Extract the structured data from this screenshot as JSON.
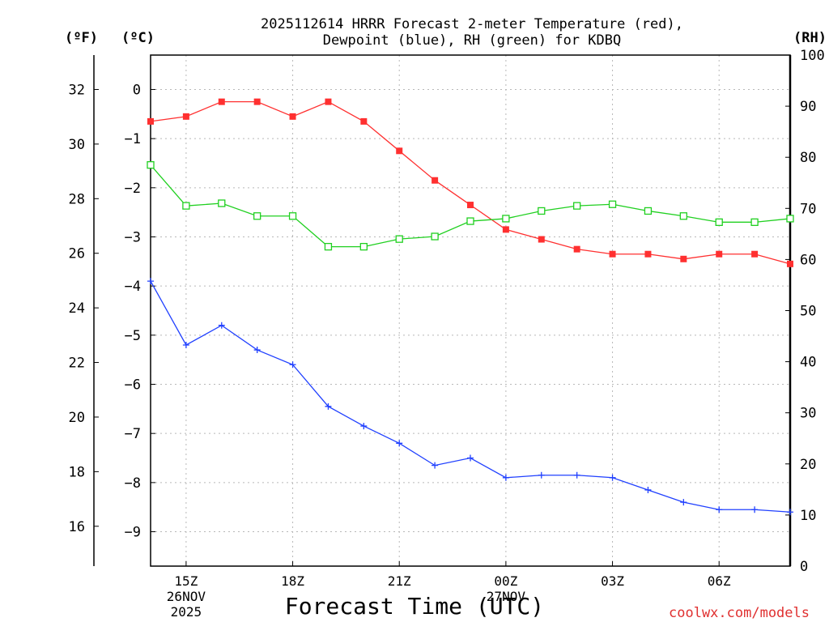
{
  "chart_data": {
    "type": "line",
    "title": "2025112614 HRRR Forecast 2-meter Temperature (red),",
    "subtitle": "Dewpoint (blue), RH (green) for KDBQ",
    "xlabel": "Forecast Time (UTC)",
    "units": {
      "fahrenheit": "(ºF)",
      "celsius": "(ºC)",
      "rh": "(RH)"
    },
    "x_hours": [
      14,
      15,
      16,
      17,
      18,
      19,
      20,
      21,
      22,
      23,
      24,
      25,
      26,
      27,
      28,
      29,
      30,
      31,
      32
    ],
    "x_range": [
      14,
      32
    ],
    "x_ticks": [
      {
        "hour": 15,
        "label": "15Z",
        "date": "26NOV",
        "year": "2025"
      },
      {
        "hour": 18,
        "label": "18Z",
        "date": "",
        "year": ""
      },
      {
        "hour": 21,
        "label": "21Z",
        "date": "",
        "year": ""
      },
      {
        "hour": 24,
        "label": "00Z",
        "date": "27NOV",
        "year": ""
      },
      {
        "hour": 27,
        "label": "03Z",
        "date": "",
        "year": ""
      },
      {
        "hour": 30,
        "label": "06Z",
        "date": "",
        "year": ""
      }
    ],
    "celsius_axis": {
      "range": [
        -9.7,
        0.7
      ],
      "ticks": [
        0,
        -1,
        -2,
        -3,
        -4,
        -5,
        -6,
        -7,
        -8,
        -9
      ],
      "tick_labels": [
        "0",
        "−1",
        "−2",
        "−3",
        "−4",
        "−5",
        "−6",
        "−7",
        "−8",
        "−9"
      ]
    },
    "fahrenheit_axis": {
      "ticks": [
        32,
        30,
        28,
        26,
        24,
        22,
        20,
        18,
        16
      ],
      "tick_labels": [
        "32",
        "30",
        "28",
        "26",
        "24",
        "22",
        "20",
        "18",
        "16"
      ]
    },
    "rh_axis": {
      "range": [
        0,
        100
      ],
      "ticks": [
        0,
        10,
        20,
        30,
        40,
        50,
        60,
        70,
        80,
        90,
        100
      ],
      "tick_labels": [
        "0",
        "10",
        "20",
        "30",
        "40",
        "50",
        "60",
        "70",
        "80",
        "90",
        "100"
      ]
    },
    "series": [
      {
        "name": "Temperature",
        "axis": "celsius",
        "color": "#ff3030",
        "marker": "square-filled",
        "values": [
          -0.65,
          -0.55,
          -0.25,
          -0.25,
          -0.55,
          -0.25,
          -0.65,
          -1.25,
          -1.85,
          -2.35,
          -2.85,
          -3.05,
          -3.25,
          -3.35,
          -3.35,
          -3.45,
          -3.35,
          -3.35,
          -3.55
        ]
      },
      {
        "name": "Dewpoint",
        "axis": "celsius",
        "color": "#2040ff",
        "marker": "plus",
        "values": [
          -3.9,
          -5.2,
          -4.8,
          -5.3,
          -5.6,
          -6.45,
          -6.85,
          -7.2,
          -7.65,
          -7.5,
          -7.9,
          -7.85,
          -7.85,
          -7.9,
          -8.15,
          -8.4,
          -8.55,
          -8.55,
          -8.6
        ]
      },
      {
        "name": "RH",
        "axis": "rh",
        "color": "#20d020",
        "marker": "square-open",
        "values": [
          78.5,
          70.5,
          71,
          68.5,
          68.5,
          62.5,
          62.5,
          64,
          64.5,
          67.5,
          68,
          69.5,
          70.5,
          70.8,
          69.5,
          68.5,
          67.3,
          67.3,
          68
        ]
      }
    ],
    "grid": true
  },
  "credit": "coolwx.com/models"
}
